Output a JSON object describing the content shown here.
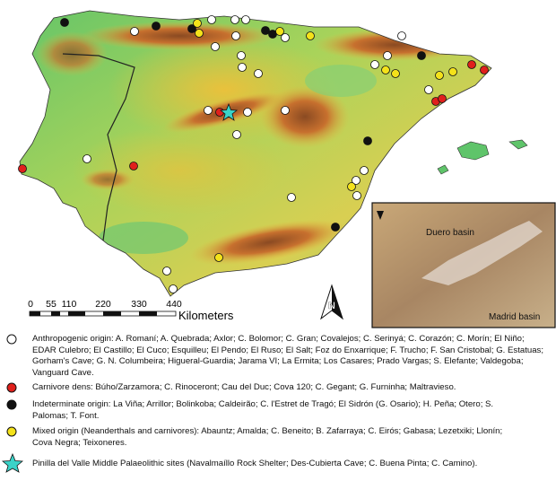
{
  "map": {
    "scale": {
      "labels": [
        "0",
        "55",
        "110",
        "220",
        "330",
        "440"
      ],
      "unit": "Kilometers"
    },
    "north": "N",
    "inset": {
      "labels": [
        "Duero basin",
        "Madrid basin"
      ]
    },
    "legend": [
      {
        "text": "Anthropogenic origin: A. Romaní; A. Quebrada; Axlor; C. Bolomor; C. Gran; Covalejos; C. Serinyá; C. Corazón; C. Morín; El Niño; EDAR Culebro; El Castillo; El Cuco; Esquilleu; El Pendo; El Ruso; El Salt; Foz do Enxarrique; F. Trucho; F. San Cristobal; G. Estatuas; Gorham's Cave; G. N. Columbeira; Higueral-Guardia; Jarama VI; La Ermita; Los Casares; Prado Vargas; S. Elefante; Valdegoba; Vanguard Cave."
      },
      {
        "text": "Carnivore dens: Búho/Zarzamora; C. Rinoceront; Cau del Duc; Cova 120; C. Gegant; G. Furninha; Maltravieso."
      },
      {
        "text": "Indeterminate origin: La Viña; Arrillor; Bolinkoba; Caldeirão; C. l'Estret de Tragó; El Sidrón (G. Osario); H. Peña; Otero; S. Palomas; T. Font."
      },
      {
        "text": "Mixed origin (Neanderthals and carnivores): Abauntz; Amalda; C. Beneito; B. Zafarraya; C. Eirós; Gabasa; Lezetxiki; Llonín; Cova Negra; Teixoneres."
      },
      {
        "text": "Pinilla del Valle Middle Palaeolithic sites (Navalmaíllo Rock Shelter; Des-Cubierta Cave; C. Buena Pinta; C. Camino)."
      }
    ]
  }
}
